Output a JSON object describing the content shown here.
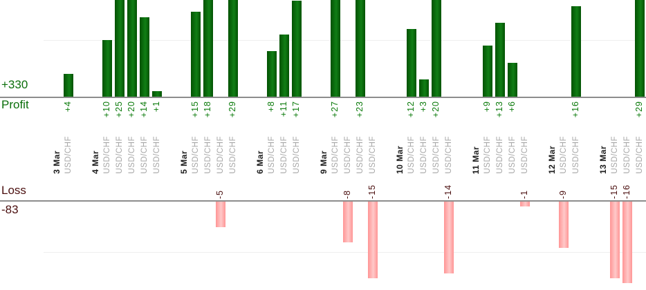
{
  "chart_data": {
    "type": "bar",
    "title": "",
    "profit_axis": {
      "label": "Profit",
      "total": "+330",
      "gridline_at": 10
    },
    "loss_axis": {
      "label": "Loss",
      "total": "-83",
      "gridline_at": -10
    },
    "legend_position": "none",
    "grid": "faint horizontal gridlines at +10 and -10",
    "groups": [
      {
        "date": "3 Mar",
        "trades": [
          {
            "pair": "USD/CHF",
            "value": 4,
            "label": "+4"
          }
        ]
      },
      {
        "date": "4 Mar",
        "trades": [
          {
            "pair": "USD/CHF",
            "value": 10,
            "label": "+10"
          },
          {
            "pair": "USD/CHF",
            "value": 25,
            "label": "+25"
          },
          {
            "pair": "USD/CHF",
            "value": 20,
            "label": "+20"
          },
          {
            "pair": "USD/CHF",
            "value": 14,
            "label": "+14"
          },
          {
            "pair": "USD/CHF",
            "value": 1,
            "label": "+1"
          }
        ]
      },
      {
        "date": "5 Mar",
        "trades": [
          {
            "pair": "USD/CHF",
            "value": 15,
            "label": "+15"
          },
          {
            "pair": "USD/CHF",
            "value": 18,
            "label": "+18"
          },
          {
            "pair": "USD/CHF",
            "value": -5,
            "label": "-5"
          },
          {
            "pair": "USD/CHF",
            "value": 29,
            "label": "+29"
          }
        ]
      },
      {
        "date": "6 Mar",
        "trades": [
          {
            "pair": "USD/CHF",
            "value": 8,
            "label": "+8"
          },
          {
            "pair": "USD/CHF",
            "value": 11,
            "label": "+11"
          },
          {
            "pair": "USD/CHF",
            "value": 17,
            "label": "+17"
          }
        ]
      },
      {
        "date": "9 Mar",
        "trades": [
          {
            "pair": "USD/CHF",
            "value": 27,
            "label": "+27"
          },
          {
            "pair": "USD/CHF",
            "value": -8,
            "label": "-8"
          },
          {
            "pair": "USD/CHF",
            "value": 23,
            "label": "+23"
          },
          {
            "pair": "USD/CHF",
            "value": -15,
            "label": "-15"
          }
        ]
      },
      {
        "date": "10 Mar",
        "trades": [
          {
            "pair": "USD/CHF",
            "value": 12,
            "label": "+12"
          },
          {
            "pair": "USD/CHF",
            "value": 3,
            "label": "+3"
          },
          {
            "pair": "USD/CHF",
            "value": 20,
            "label": "+20"
          },
          {
            "pair": "USD/CHF",
            "value": -14,
            "label": "-14"
          }
        ]
      },
      {
        "date": "11 Mar",
        "trades": [
          {
            "pair": "USD/CHF",
            "value": 9,
            "label": "+9"
          },
          {
            "pair": "USD/CHF",
            "value": 13,
            "label": "+13"
          },
          {
            "pair": "USD/CHF",
            "value": 6,
            "label": "+6"
          },
          {
            "pair": "USD/CHF",
            "value": -1,
            "label": "-1"
          }
        ]
      },
      {
        "date": "12 Mar",
        "trades": [
          {
            "pair": "USD/CHF",
            "value": -9,
            "label": "-9"
          },
          {
            "pair": "USD/CHF",
            "value": 16,
            "label": "+16"
          }
        ]
      },
      {
        "date": "13 Mar",
        "trades": [
          {
            "pair": "USD/CHF",
            "value": -15,
            "label": "-15"
          },
          {
            "pair": "USD/CHF",
            "value": -16,
            "label": "-16"
          },
          {
            "pair": "USD/CHF",
            "value": 29,
            "label": "+29"
          }
        ]
      }
    ],
    "colors": {
      "profit_bar": "#0f7a10",
      "loss_bar": "#ffabab",
      "profit_text": "#0a6e0a",
      "loss_text": "#4a0e0e",
      "axis_line": "#8c8c8c",
      "gridline": "#efefef",
      "date_text": "#1c1c1c",
      "pair_text": "#a6a6a6"
    }
  }
}
